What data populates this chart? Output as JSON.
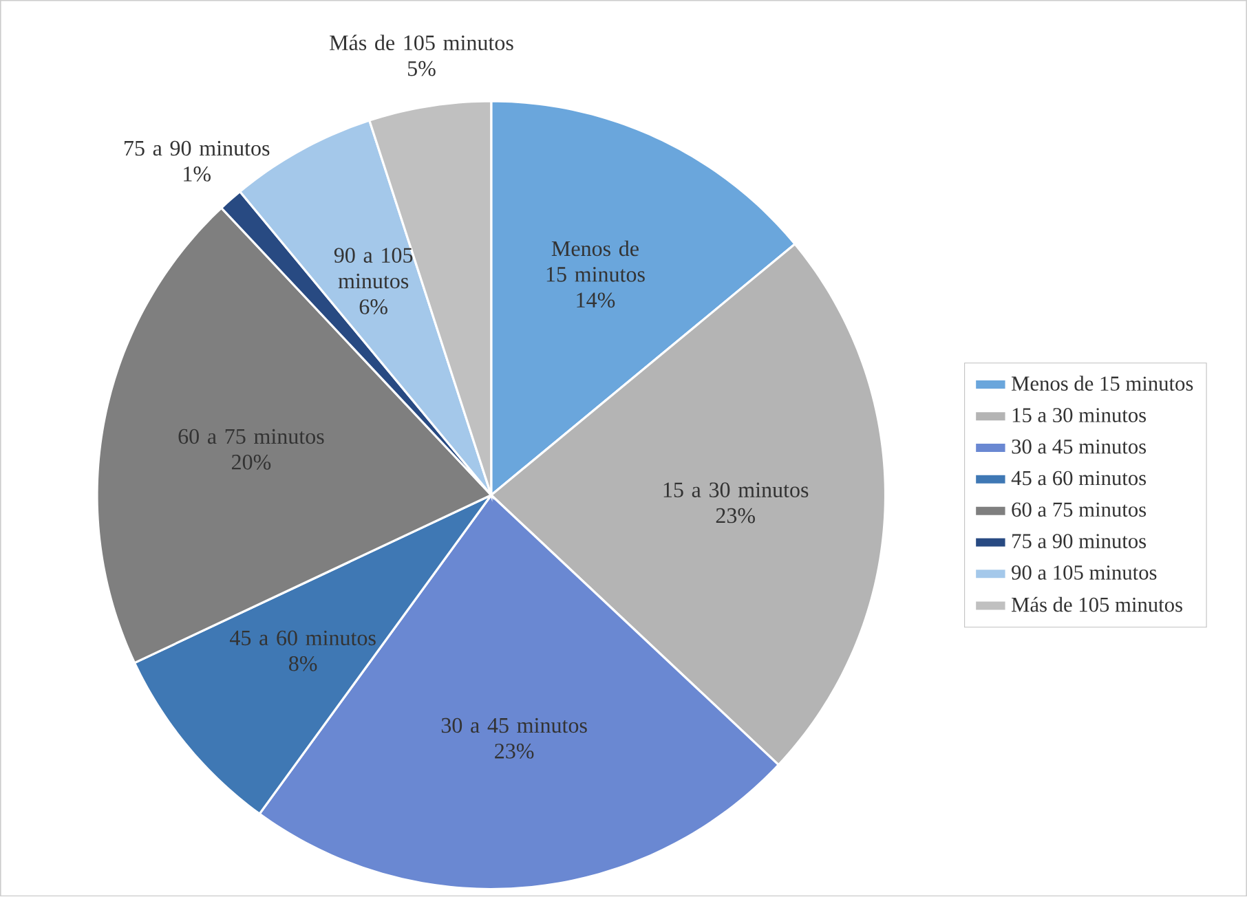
{
  "chart_data": {
    "type": "pie",
    "categories": [
      "Menos de 15 minutos",
      "15 a 30 minutos",
      "30 a 45 minutos",
      "45 a 60 minutos",
      "60 a 75 minutos",
      "75 a 90 minutos",
      "90 a 105 minutos",
      "Más de 105 minutos"
    ],
    "values": [
      14,
      23,
      23,
      8,
      20,
      1,
      6,
      5
    ],
    "value_labels": [
      "14%",
      "23%",
      "23%",
      "8%",
      "20%",
      "1%",
      "6%",
      "5%"
    ],
    "colors": [
      "#6aa6dc",
      "#b4b4b4",
      "#6a88d2",
      "#3f78b4",
      "#7f7f7f",
      "#284a82",
      "#a4c8ea",
      "#c0c0c0"
    ],
    "legend": "right"
  }
}
